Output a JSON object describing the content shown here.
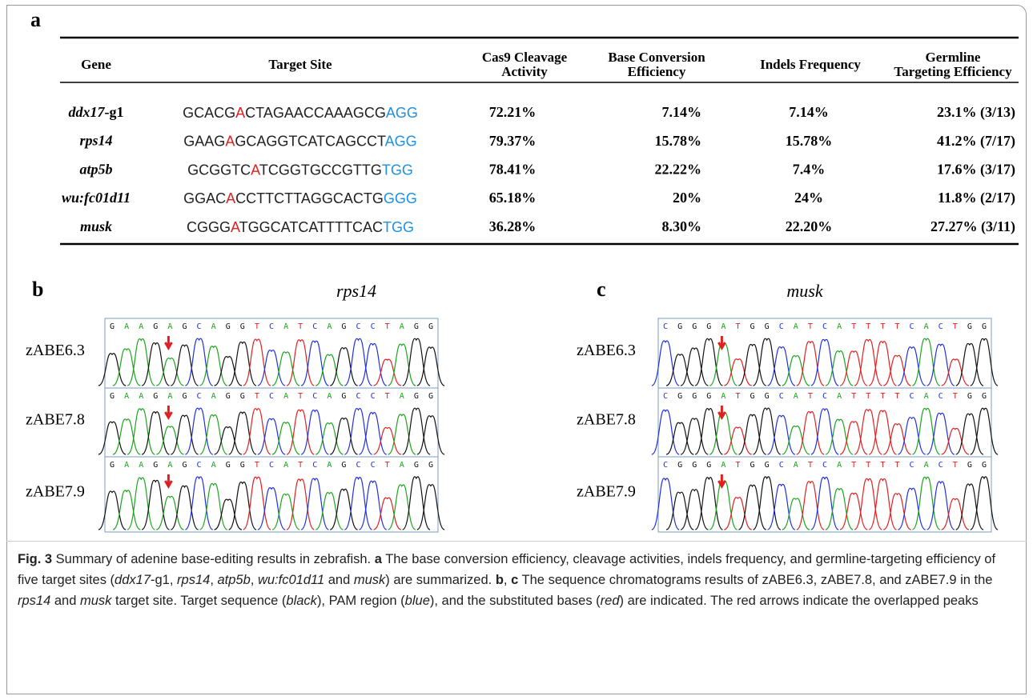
{
  "panel_a": {
    "label": "a",
    "headers": [
      "Gene",
      "Target Site",
      [
        "Cas9 Cleavage",
        "Activity"
      ],
      [
        "Base Conversion",
        "Efficiency"
      ],
      "Indels Frequency",
      [
        "Germline",
        "Targeting Efficiency"
      ]
    ],
    "rows": [
      {
        "gene": [
          "ddx17",
          "-g1"
        ],
        "target": [
          "GCACG",
          "A",
          "CTAGAACCAAAGCG",
          "AGG"
        ],
        "cas9": "72.21%",
        "conversion": "7.14%",
        "indels": "7.14%",
        "germline": "23.1% (3/13)"
      },
      {
        "gene": [
          "rps14"
        ],
        "target": [
          "GAAG",
          "A",
          "GCAGGTCATCAGCCT",
          "AGG"
        ],
        "cas9": "79.37%",
        "conversion": "15.78%",
        "indels": "15.78%",
        "germline": "41.2% (7/17)"
      },
      {
        "gene": [
          "atp5b"
        ],
        "target": [
          "GCGGTC",
          "A",
          "TCGGTGCCGTTG",
          "TGG"
        ],
        "cas9": "78.41%",
        "conversion": "22.22%",
        "indels": "7.4%",
        "germline": "17.6% (3/17)"
      },
      {
        "gene": [
          "wu:fc01d11"
        ],
        "target": [
          "GGAC",
          "A",
          "CCTTCTTAGGCACTG",
          "GGG"
        ],
        "cas9": "65.18%",
        "conversion": "20%",
        "indels": "24%",
        "germline": "11.8% (2/17)"
      },
      {
        "gene": [
          "musk"
        ],
        "target": [
          "CGGG",
          "A",
          "TGGCATCATTTTCAC",
          "TGG"
        ],
        "cas9": "36.28%",
        "conversion": "8.30%",
        "indels": "22.20%",
        "germline": "27.27% (3/11)"
      }
    ]
  },
  "panel_b": {
    "label": "b",
    "title": "rps14",
    "sequence": [
      "G",
      "A",
      "A",
      "G",
      "A",
      "G",
      "C",
      "A",
      "G",
      "G",
      "T",
      "C",
      "A",
      "T",
      "C",
      "A",
      "G",
      "C",
      "C",
      "T",
      "A",
      "G",
      "G"
    ],
    "tracks": [
      "zABE6.3",
      "zABE7.8",
      "zABE7.9"
    ]
  },
  "panel_c": {
    "label": "c",
    "title": "musk",
    "sequence": [
      "C",
      "G",
      "G",
      "G",
      "A",
      "T",
      "G",
      "G",
      "C",
      "A",
      "T",
      "C",
      "A",
      "T",
      "T",
      "T",
      "T",
      "C",
      "A",
      "C",
      "T",
      "G",
      "G"
    ],
    "tracks": [
      "zABE6.3",
      "zABE7.8",
      "zABE7.9"
    ]
  },
  "caption": [
    "Fig. 3",
    " Summary of adenine base-editing results in zebrafish. ",
    "a",
    " The base conversion efficiency, cleavage activities, indels frequency, and germline-targeting efficiency of five target sites (",
    "ddx17",
    "-g1, ",
    "rps14",
    ", ",
    "atp5b",
    ", ",
    "wu:fc01d11",
    " and ",
    "musk",
    ") are summarized. ",
    "b",
    ", ",
    "c",
    " The sequence chromatograms results of zABE6.3, zABE7.8, and zABE7.9 in the ",
    "rps14",
    " and ",
    "musk",
    " target site. Target sequence (",
    "black",
    "), PAM region (",
    "blue",
    "), and the substituted bases (",
    "red",
    ") are indicated. The red arrows indicate the overlapped peaks"
  ]
}
